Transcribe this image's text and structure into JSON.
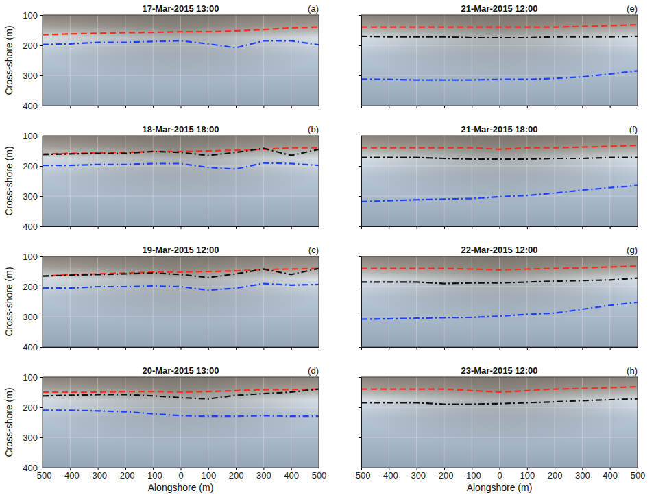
{
  "chart_data": [
    {
      "type": "line",
      "title": "17-Mar-2015 13:00",
      "letter": "(a)",
      "y_label": "Cross-shore (m)",
      "x": [
        -500,
        -400,
        -300,
        -200,
        -100,
        0,
        100,
        200,
        300,
        400,
        500
      ],
      "xlim": [
        -500,
        500
      ],
      "xticks": [
        -500,
        -400,
        -300,
        -200,
        -100,
        0,
        100,
        200,
        300,
        400,
        500
      ],
      "ylim": [
        400,
        100
      ],
      "yticks": [
        100,
        200,
        300,
        400
      ],
      "grid": true,
      "tick_labels": "y",
      "series": [
        {
          "color": "#ff2a1a",
          "line_style": "dashed",
          "values": [
            165,
            162,
            160,
            158,
            157,
            155,
            155,
            152,
            148,
            143,
            140
          ]
        },
        {
          "color": "#1f3fff",
          "line_style": "dashdot",
          "values": [
            197,
            195,
            190,
            190,
            187,
            185,
            195,
            208,
            185,
            185,
            198
          ]
        }
      ]
    },
    {
      "type": "line",
      "title": "18-Mar-2015 18:00",
      "letter": "(b)",
      "y_label": "Cross-shore (m)",
      "x": [
        -500,
        -400,
        -300,
        -200,
        -100,
        0,
        100,
        200,
        300,
        400,
        500
      ],
      "xlim": [
        -500,
        500
      ],
      "xticks": [
        -500,
        -400,
        -300,
        -200,
        -100,
        0,
        100,
        200,
        300,
        400,
        500
      ],
      "ylim": [
        400,
        100
      ],
      "yticks": [
        100,
        200,
        300,
        400
      ],
      "grid": true,
      "tick_labels": "y",
      "series": [
        {
          "color": "#ff2a1a",
          "line_style": "dashed",
          "values": [
            160,
            158,
            157,
            155,
            152,
            152,
            150,
            148,
            145,
            140,
            140
          ]
        },
        {
          "color": "#111111",
          "line_style": "dashdot",
          "values": [
            162,
            160,
            158,
            158,
            152,
            155,
            165,
            155,
            142,
            165,
            145
          ]
        },
        {
          "color": "#1f3fff",
          "line_style": "dashdot",
          "values": [
            198,
            198,
            195,
            195,
            192,
            192,
            205,
            210,
            190,
            192,
            198
          ]
        }
      ]
    },
    {
      "type": "line",
      "title": "19-Mar-2015 12:00",
      "letter": "(c)",
      "y_label": "Cross-shore (m)",
      "x": [
        -500,
        -400,
        -300,
        -200,
        -100,
        0,
        100,
        200,
        300,
        400,
        500
      ],
      "xlim": [
        -500,
        500
      ],
      "xticks": [
        -500,
        -400,
        -300,
        -200,
        -100,
        0,
        100,
        200,
        300,
        400,
        500
      ],
      "ylim": [
        400,
        100
      ],
      "yticks": [
        100,
        200,
        300,
        400
      ],
      "grid": true,
      "tick_labels": "y",
      "series": [
        {
          "color": "#ff2a1a",
          "line_style": "dashed",
          "values": [
            165,
            160,
            158,
            155,
            152,
            152,
            150,
            148,
            143,
            142,
            140
          ]
        },
        {
          "color": "#111111",
          "line_style": "dashdot",
          "values": [
            165,
            162,
            160,
            158,
            155,
            160,
            170,
            158,
            142,
            160,
            140
          ]
        },
        {
          "color": "#1f3fff",
          "line_style": "dashdot",
          "values": [
            205,
            205,
            200,
            200,
            198,
            200,
            212,
            205,
            190,
            195,
            193
          ]
        }
      ]
    },
    {
      "type": "line",
      "title": "20-Mar-2015 13:00",
      "letter": "(d)",
      "y_label": "Cross-shore (m)",
      "x_label": "Alongshore (m)",
      "x": [
        -500,
        -400,
        -300,
        -200,
        -100,
        0,
        100,
        200,
        300,
        400,
        500
      ],
      "xlim": [
        -500,
        500
      ],
      "xticks": [
        -500,
        -400,
        -300,
        -200,
        -100,
        0,
        100,
        200,
        300,
        400,
        500
      ],
      "ylim": [
        400,
        100
      ],
      "yticks": [
        100,
        200,
        300,
        400
      ],
      "grid": true,
      "tick_labels": true,
      "series": [
        {
          "color": "#ff2a1a",
          "line_style": "dashed",
          "values": [
            150,
            150,
            150,
            148,
            148,
            150,
            148,
            145,
            142,
            142,
            140
          ]
        },
        {
          "color": "#111111",
          "line_style": "dashdot",
          "values": [
            162,
            160,
            158,
            158,
            162,
            168,
            172,
            160,
            155,
            150,
            140
          ]
        },
        {
          "color": "#1f3fff",
          "line_style": "dashdot",
          "values": [
            210,
            210,
            212,
            215,
            222,
            228,
            230,
            230,
            228,
            230,
            230
          ]
        }
      ]
    },
    {
      "type": "line",
      "title": "21-Mar-2015 12:00",
      "letter": "(e)",
      "x": [
        -500,
        -400,
        -300,
        -200,
        -100,
        0,
        100,
        200,
        300,
        400,
        500
      ],
      "xlim": [
        -500,
        500
      ],
      "xticks": [
        -500,
        -400,
        -300,
        -200,
        -100,
        0,
        100,
        200,
        300,
        400,
        500
      ],
      "ylim": [
        400,
        100
      ],
      "yticks": [
        100,
        200,
        300,
        400
      ],
      "grid": true,
      "tick_labels": false,
      "series": [
        {
          "color": "#ff2a1a",
          "line_style": "dashed",
          "values": [
            140,
            140,
            140,
            140,
            140,
            140,
            140,
            140,
            138,
            135,
            132
          ]
        },
        {
          "color": "#111111",
          "line_style": "dashdot",
          "values": [
            170,
            172,
            172,
            172,
            175,
            175,
            175,
            172,
            172,
            172,
            170
          ]
        },
        {
          "color": "#1f3fff",
          "line_style": "dashdot",
          "values": [
            312,
            313,
            315,
            315,
            315,
            313,
            313,
            310,
            305,
            295,
            285
          ]
        }
      ]
    },
    {
      "type": "line",
      "title": "21-Mar-2015 18:00",
      "letter": "(f)",
      "x": [
        -500,
        -400,
        -300,
        -200,
        -100,
        0,
        100,
        200,
        300,
        400,
        500
      ],
      "xlim": [
        -500,
        500
      ],
      "xticks": [
        -500,
        -400,
        -300,
        -200,
        -100,
        0,
        100,
        200,
        300,
        400,
        500
      ],
      "ylim": [
        400,
        100
      ],
      "yticks": [
        100,
        200,
        300,
        400
      ],
      "grid": true,
      "tick_labels": false,
      "series": [
        {
          "color": "#ff2a1a",
          "line_style": "dashed",
          "values": [
            140,
            140,
            140,
            140,
            140,
            145,
            140,
            140,
            138,
            135,
            132
          ]
        },
        {
          "color": "#111111",
          "line_style": "dashdot",
          "values": [
            172,
            172,
            172,
            175,
            177,
            177,
            177,
            175,
            175,
            172,
            172
          ]
        },
        {
          "color": "#1f3fff",
          "line_style": "dashdot",
          "values": [
            318,
            315,
            312,
            310,
            308,
            302,
            298,
            290,
            280,
            272,
            265
          ]
        }
      ]
    },
    {
      "type": "line",
      "title": "22-Mar-2015 12:00",
      "letter": "(g)",
      "x": [
        -500,
        -400,
        -300,
        -200,
        -100,
        0,
        100,
        200,
        300,
        400,
        500
      ],
      "xlim": [
        -500,
        500
      ],
      "xticks": [
        -500,
        -400,
        -300,
        -200,
        -100,
        0,
        100,
        200,
        300,
        400,
        500
      ],
      "ylim": [
        400,
        100
      ],
      "yticks": [
        100,
        200,
        300,
        400
      ],
      "grid": true,
      "tick_labels": false,
      "series": [
        {
          "color": "#ff2a1a",
          "line_style": "dashed",
          "values": [
            140,
            140,
            140,
            140,
            142,
            145,
            142,
            140,
            138,
            135,
            132
          ]
        },
        {
          "color": "#111111",
          "line_style": "dashdot",
          "values": [
            185,
            185,
            185,
            190,
            188,
            188,
            185,
            182,
            180,
            178,
            172
          ]
        },
        {
          "color": "#1f3fff",
          "line_style": "dashdot",
          "values": [
            308,
            307,
            305,
            303,
            302,
            298,
            292,
            288,
            275,
            262,
            252
          ]
        }
      ]
    },
    {
      "type": "line",
      "title": "23-Mar-2015 12:00",
      "letter": "(h)",
      "x_label": "Alongshore (m)",
      "x": [
        -500,
        -400,
        -300,
        -200,
        -100,
        0,
        100,
        200,
        300,
        400,
        500
      ],
      "xlim": [
        -500,
        500
      ],
      "xticks": [
        -500,
        -400,
        -300,
        -200,
        -100,
        0,
        100,
        200,
        300,
        400,
        500
      ],
      "ylim": [
        400,
        100
      ],
      "yticks": [
        100,
        200,
        300,
        400
      ],
      "grid": true,
      "tick_labels": "x",
      "series": [
        {
          "color": "#ff2a1a",
          "line_style": "dashed",
          "values": [
            140,
            140,
            140,
            140,
            145,
            150,
            145,
            140,
            138,
            135,
            132
          ]
        },
        {
          "color": "#111111",
          "line_style": "dashdot",
          "values": [
            185,
            185,
            185,
            190,
            190,
            188,
            185,
            182,
            178,
            175,
            172
          ]
        }
      ]
    }
  ]
}
